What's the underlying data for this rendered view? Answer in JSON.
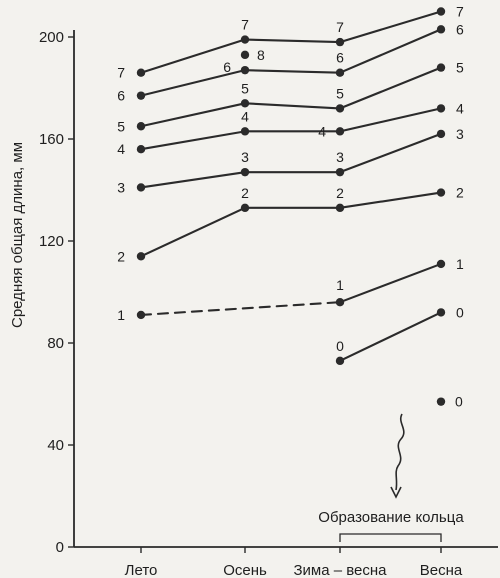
{
  "chart_data": {
    "type": "line",
    "ylabel": "Средняя общая длина, мм",
    "ylim": [
      0,
      230
    ],
    "yticks": [
      0,
      40,
      80,
      120,
      160,
      200
    ],
    "categories": [
      "Лето",
      "Осень",
      "Зима – весна",
      "Весна"
    ],
    "series": [
      {
        "name": "1",
        "points": [
          [
            0,
            91
          ],
          [
            2,
            96
          ],
          [
            3,
            111
          ]
        ],
        "dashed_segments": [
          [
            0,
            2
          ]
        ]
      },
      {
        "name": "2",
        "points": [
          [
            0,
            114
          ],
          [
            1,
            133
          ],
          [
            2,
            133
          ],
          [
            3,
            139
          ]
        ]
      },
      {
        "name": "3",
        "points": [
          [
            0,
            141
          ],
          [
            1,
            147
          ],
          [
            2,
            147
          ],
          [
            3,
            162
          ]
        ]
      },
      {
        "name": "4",
        "points": [
          [
            0,
            156
          ],
          [
            1,
            163
          ],
          [
            2,
            163
          ],
          [
            3,
            172
          ]
        ]
      },
      {
        "name": "5",
        "points": [
          [
            0,
            165
          ],
          [
            1,
            174
          ],
          [
            2,
            172
          ],
          [
            3,
            188
          ]
        ]
      },
      {
        "name": "6",
        "points": [
          [
            0,
            177
          ],
          [
            1,
            187
          ],
          [
            2,
            186
          ],
          [
            3,
            203
          ]
        ]
      },
      {
        "name": "7",
        "points": [
          [
            0,
            186
          ],
          [
            1,
            199
          ],
          [
            2,
            198
          ],
          [
            3,
            210
          ]
        ]
      },
      {
        "name": "0",
        "points": [
          [
            2,
            73
          ],
          [
            3,
            92
          ]
        ]
      },
      {
        "name": "8",
        "points": [
          [
            1,
            193
          ]
        ]
      },
      {
        "name": "0",
        "points": [
          [
            3,
            57
          ]
        ]
      }
    ],
    "annotation": "Образование кольца"
  }
}
